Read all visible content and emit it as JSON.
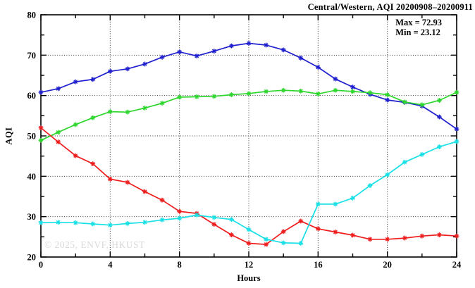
{
  "figure": {
    "title": "Central/Western, AQI 20200908–20200911",
    "xlabel": "Hours",
    "ylabel": "AQI",
    "annotations": {
      "max": "Max = 72.93",
      "min": "Min = 23.12"
    },
    "watermark": "© 2025, ENVF, HKUST"
  },
  "chart_data": {
    "type": "line",
    "title": "Central/Western, AQI 20200908–20200911",
    "xlabel": "Hours",
    "ylabel": "AQI",
    "xlim": [
      0,
      24
    ],
    "ylim": [
      20,
      80
    ],
    "x_major_ticks": [
      0,
      4,
      8,
      12,
      16,
      20,
      24
    ],
    "x_minor_step": 2,
    "y_major_ticks": [
      20,
      30,
      40,
      50,
      60,
      70,
      80
    ],
    "y_minor_step": 5,
    "grid": "dotted-at-major-ticks",
    "legend": "none",
    "marker": "asterisk",
    "max_value": 72.93,
    "min_value": 23.12,
    "x": [
      0,
      1,
      2,
      3,
      4,
      5,
      6,
      7,
      8,
      9,
      10,
      11,
      12,
      13,
      14,
      15,
      16,
      17,
      18,
      19,
      20,
      21,
      22,
      23,
      24
    ],
    "series": [
      {
        "name": "blue",
        "color": "#2020cf",
        "values": [
          60.8,
          61.7,
          63.4,
          64.0,
          66.0,
          66.6,
          67.8,
          69.5,
          70.8,
          69.8,
          71.0,
          72.3,
          72.93,
          72.5,
          71.3,
          69.3,
          67.0,
          64.1,
          62.1,
          60.3,
          58.9,
          58.3,
          57.4,
          54.7,
          51.7
        ]
      },
      {
        "name": "green",
        "color": "#2dd62d",
        "values": [
          48.9,
          50.9,
          52.8,
          54.5,
          56.0,
          55.9,
          56.9,
          58.1,
          59.6,
          59.7,
          59.8,
          60.2,
          60.5,
          61.0,
          61.3,
          61.1,
          60.4,
          61.3,
          61.0,
          60.7,
          60.2,
          58.4,
          57.7,
          58.8,
          60.8
        ]
      },
      {
        "name": "red",
        "color": "#ee1c1c",
        "values": [
          52.0,
          48.5,
          45.1,
          43.1,
          39.3,
          38.5,
          36.2,
          34.1,
          31.3,
          30.8,
          28.1,
          25.5,
          23.4,
          23.12,
          26.3,
          28.9,
          27.0,
          26.2,
          25.4,
          24.4,
          24.4,
          24.7,
          25.2,
          25.5,
          25.2
        ]
      },
      {
        "name": "cyan",
        "color": "#17e0e6",
        "values": [
          28.5,
          28.6,
          28.5,
          28.2,
          27.9,
          28.3,
          28.6,
          29.2,
          29.6,
          30.4,
          29.8,
          29.3,
          26.8,
          24.4,
          23.5,
          23.4,
          33.1,
          33.1,
          34.6,
          37.7,
          40.4,
          43.5,
          45.4,
          47.3,
          48.6
        ]
      }
    ],
    "layout": {
      "grid_color": "#3a3a3a",
      "border_color": "#000000",
      "background": "#ffffff"
    }
  }
}
